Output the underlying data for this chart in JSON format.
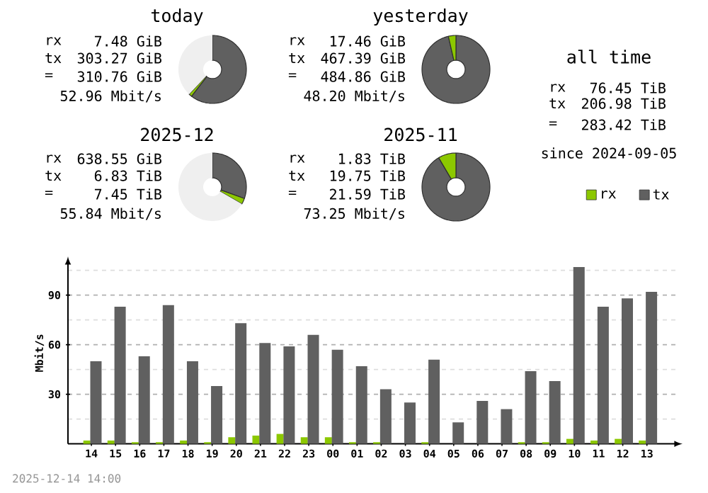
{
  "chart_data": [
    {
      "type": "donut",
      "title": "today",
      "categories": [
        null,
        null,
        null
      ],
      "values": [
        60.5,
        1.5,
        38
      ],
      "colors": [
        "#606060",
        "#8cc800",
        "#efefef"
      ],
      "annotations": [
        "rx",
        "7.48 GiB",
        "tx",
        "303.27 GiB",
        "=",
        "310.76 GiB",
        "52.96 Mbit/s"
      ]
    },
    {
      "type": "donut",
      "title": "yesterday",
      "categories": [
        null,
        null
      ],
      "values": [
        96.4,
        3.6
      ],
      "colors": [
        "#606060",
        "#8cc800"
      ],
      "annotations": [
        "rx",
        "17.46 GiB",
        "tx",
        "467.39 GiB",
        "=",
        "484.86 GiB",
        "48.20 Mbit/s"
      ]
    },
    {
      "type": "other",
      "title": "all time",
      "annotations": [
        "rx",
        "76.45 TiB",
        "tx",
        "206.98 TiB",
        "=",
        "283.42 TiB",
        "since 2024-09-05"
      ]
    },
    {
      "type": "donut",
      "title": "2025-12",
      "categories": [
        null,
        null,
        null
      ],
      "values": [
        30.5,
        2.8,
        66.7
      ],
      "colors": [
        "#606060",
        "#8cc800",
        "#efefef"
      ],
      "annotations": [
        "rx",
        "638.55 GiB",
        "tx",
        "6.83 TiB",
        "=",
        "7.45 TiB",
        "55.84 Mbit/s"
      ]
    },
    {
      "type": "donut",
      "title": "2025-11",
      "categories": [
        null,
        null
      ],
      "values": [
        91.5,
        8.5
      ],
      "colors": [
        "#606060",
        "#8cc800"
      ],
      "annotations": [
        "rx",
        "1.83 TiB",
        "tx",
        "19.75 TiB",
        "=",
        "21.59 TiB",
        "73.25 Mbit/s"
      ]
    },
    {
      "type": "bar",
      "ylabel": "Mbit/s",
      "legend": "top right",
      "grid": "y",
      "categories": [
        "14",
        "15",
        "16",
        "17",
        "18",
        "19",
        "20",
        "21",
        "22",
        "23",
        "00",
        "01",
        "02",
        "03",
        "04",
        "05",
        "06",
        "07",
        "08",
        "09",
        "10",
        "11",
        "12",
        "13"
      ],
      "series": [
        {
          "name": "rx",
          "color": "#8cc800",
          "values": [
            2,
            2,
            1,
            1,
            2,
            1,
            4,
            5,
            6,
            4,
            4,
            1,
            1,
            0,
            1,
            0,
            0,
            0,
            1,
            1,
            3,
            2,
            3,
            2
          ]
        },
        {
          "name": "tx",
          "color": "#606060",
          "values": [
            50,
            83,
            53,
            84,
            50,
            35,
            73,
            61,
            59,
            66,
            57,
            47,
            33,
            25,
            51,
            13,
            26,
            21,
            44,
            38,
            107,
            83,
            88,
            92
          ]
        }
      ],
      "ylim": [
        0,
        110
      ],
      "yticks": [
        {
          "value": 15,
          "label": null
        },
        30,
        {
          "value": 45,
          "label": null
        },
        60,
        {
          "value": 75,
          "label": null
        },
        90,
        {
          "value": 105,
          "label": null
        }
      ],
      "annotations": [
        "2025-12-14 14:00"
      ]
    }
  ]
}
